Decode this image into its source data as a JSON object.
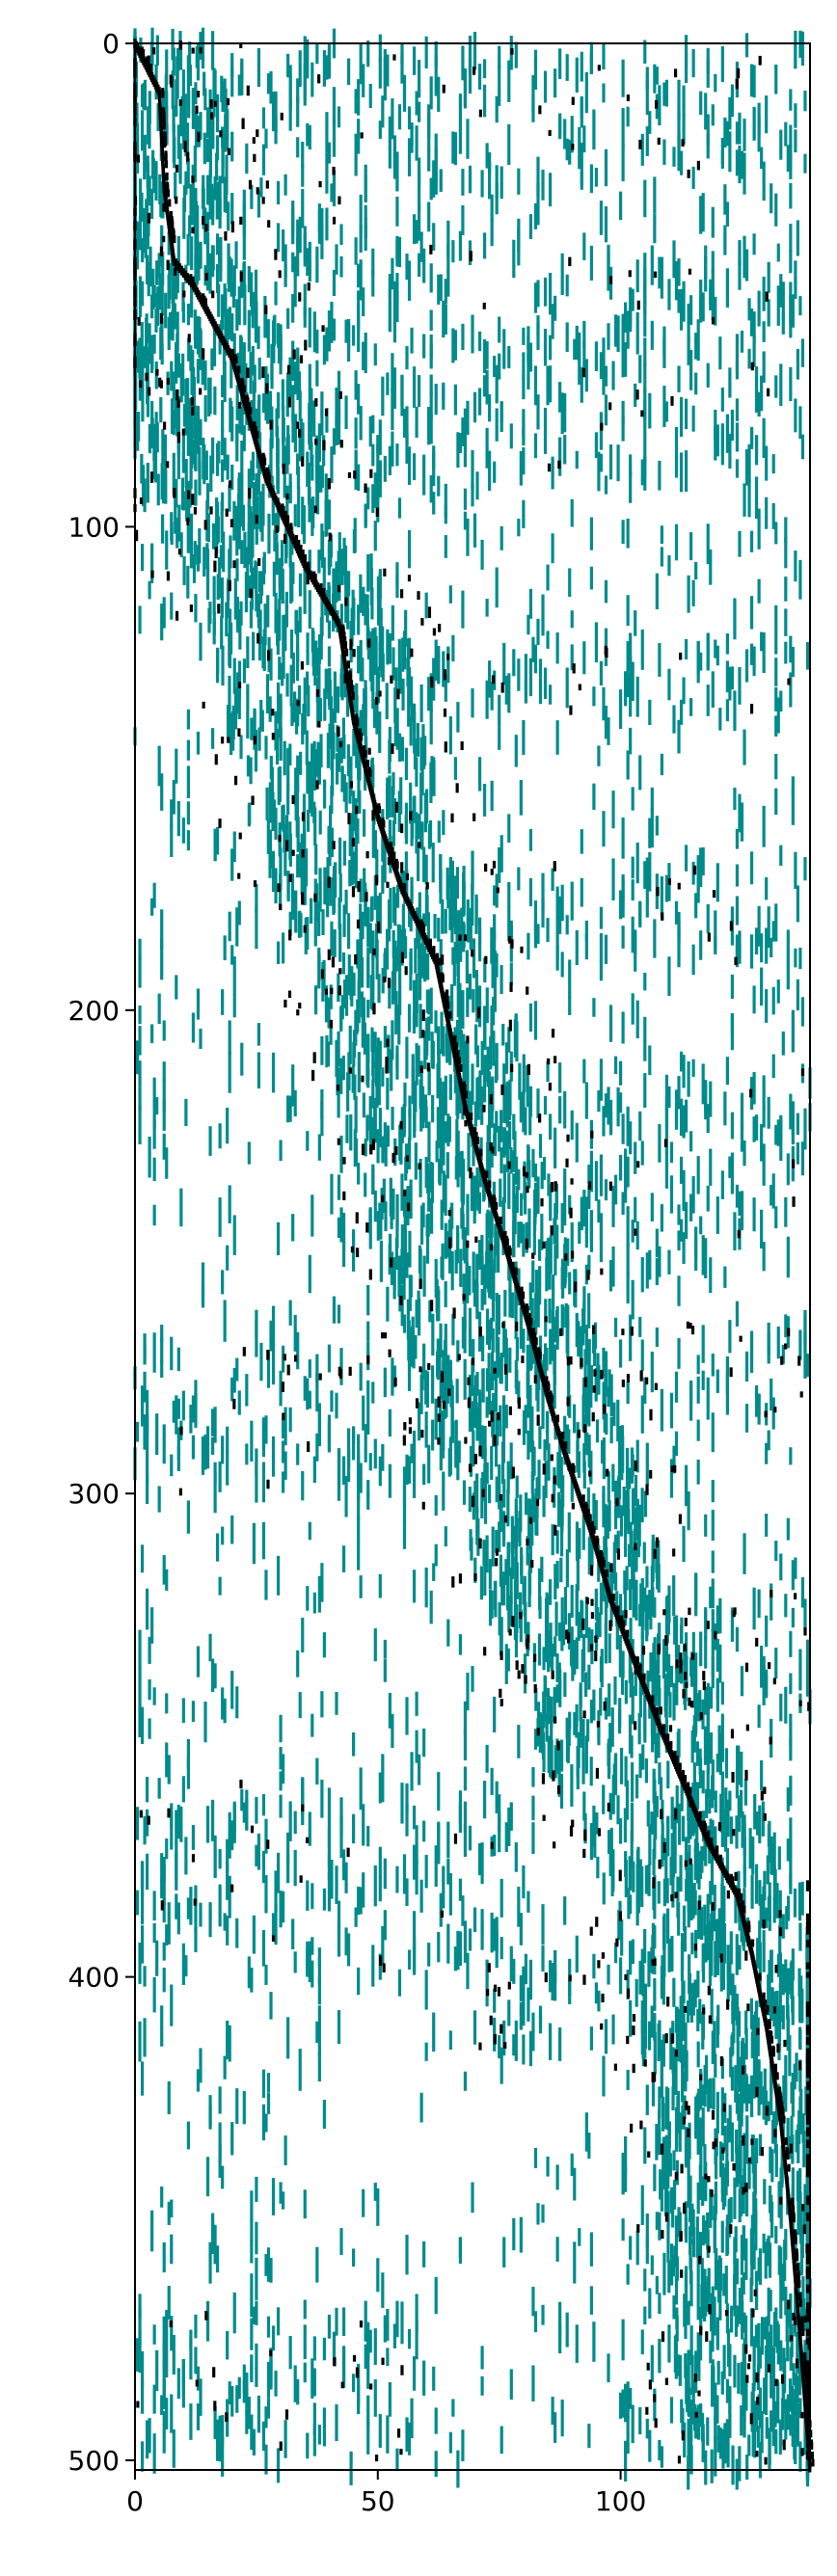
{
  "chart_data": {
    "type": "scatter",
    "title": "",
    "xlabel": "",
    "ylabel": "",
    "xlim": [
      0,
      139
    ],
    "ylim": [
      502,
      0
    ],
    "y_inverted": true,
    "grid": false,
    "legend": "none",
    "x_ticks": [
      0,
      50,
      100
    ],
    "y_ticks": [
      0,
      100,
      200,
      300,
      400,
      500
    ],
    "x_tick_labels": [
      "0",
      "50",
      "100"
    ],
    "y_tick_labels": [
      "0",
      "100",
      "200",
      "300",
      "400",
      "500"
    ],
    "description": "Binary spy-style matrix plot of 502 rows by 139 columns; each nonzero is drawn as a short vertical tick. Two series: teal markers (nonzeros) and black markers (strong entries concentrated along a descending diagonal).",
    "series": [
      {
        "color": "#008b8b",
        "marker": "vertical-tick",
        "band_points": [
          {
            "x": 4,
            "y": 5
          },
          {
            "x": 22,
            "y": 25
          },
          {
            "x": 38,
            "y": 60
          },
          {
            "x": 52,
            "y": 120
          },
          {
            "x": 62,
            "y": 180
          },
          {
            "x": 72,
            "y": 220
          },
          {
            "x": 85,
            "y": 260
          },
          {
            "x": 97,
            "y": 320
          },
          {
            "x": 108,
            "y": 340
          },
          {
            "x": 120,
            "y": 380
          },
          {
            "x": 128,
            "y": 420
          },
          {
            "x": 135,
            "y": 470
          }
        ],
        "clusters": [
          {
            "x": [
              0,
              70
            ],
            "y": [
              0,
              50
            ]
          },
          {
            "x": [
              10,
              75
            ],
            "y": [
              45,
              95
            ]
          },
          {
            "x": [
              60,
              139
            ],
            "y": [
              0,
              30
            ]
          },
          {
            "x": [
              80,
              139
            ],
            "y": [
              45,
              90
            ]
          },
          {
            "x": [
              45,
              139
            ],
            "y": [
              125,
              140
            ]
          },
          {
            "x": [
              65,
              139
            ],
            "y": [
              170,
              190
            ]
          },
          {
            "x": [
              65,
              139
            ],
            "y": [
              210,
              255
            ]
          },
          {
            "x": [
              70,
              139
            ],
            "y": [
              265,
              285
            ]
          },
          {
            "x": [
              90,
              139
            ],
            "y": [
              320,
              345
            ]
          },
          {
            "x": [
              70,
              105
            ],
            "y": [
              395,
              415
            ]
          },
          {
            "x": [
              100,
              139
            ],
            "y": [
              420,
              500
            ]
          },
          {
            "x": [
              0,
              70
            ],
            "y": [
              270,
              300
            ]
          },
          {
            "x": [
              0,
              80
            ],
            "y": [
              360,
              400
            ]
          },
          {
            "x": [
              0,
              60
            ],
            "y": [
              470,
              500
            ]
          }
        ]
      },
      {
        "color": "#000000",
        "marker": "vertical-tick",
        "diagonal_path": [
          {
            "x": 0,
            "y": 0
          },
          {
            "x": 5,
            "y": 10
          },
          {
            "x": 6,
            "y": 30
          },
          {
            "x": 8,
            "y": 45
          },
          {
            "x": 12,
            "y": 50
          },
          {
            "x": 20,
            "y": 65
          },
          {
            "x": 27,
            "y": 90
          },
          {
            "x": 35,
            "y": 108
          },
          {
            "x": 42,
            "y": 120
          },
          {
            "x": 45,
            "y": 140
          },
          {
            "x": 50,
            "y": 160
          },
          {
            "x": 55,
            "y": 175
          },
          {
            "x": 62,
            "y": 190
          },
          {
            "x": 64,
            "y": 200
          },
          {
            "x": 68,
            "y": 220
          },
          {
            "x": 72,
            "y": 235
          },
          {
            "x": 76,
            "y": 248
          },
          {
            "x": 81,
            "y": 265
          },
          {
            "x": 85,
            "y": 280
          },
          {
            "x": 88,
            "y": 290
          },
          {
            "x": 94,
            "y": 308
          },
          {
            "x": 98,
            "y": 322
          },
          {
            "x": 103,
            "y": 335
          },
          {
            "x": 108,
            "y": 348
          },
          {
            "x": 113,
            "y": 360
          },
          {
            "x": 118,
            "y": 372
          },
          {
            "x": 124,
            "y": 383
          },
          {
            "x": 127,
            "y": 395
          },
          {
            "x": 130,
            "y": 410
          },
          {
            "x": 133,
            "y": 430
          },
          {
            "x": 135,
            "y": 450
          },
          {
            "x": 137,
            "y": 475
          },
          {
            "x": 139,
            "y": 502
          }
        ]
      }
    ]
  }
}
